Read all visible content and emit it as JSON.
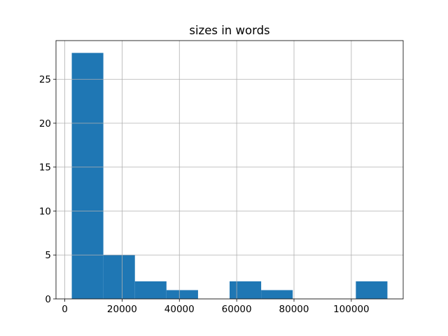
{
  "chart_data": {
    "type": "histogram",
    "title": "sizes in words",
    "bins": [
      2450,
      13465,
      24480,
      35495,
      46510,
      57525,
      68540,
      79555,
      90570,
      101585,
      112600
    ],
    "values": [
      28,
      5,
      2,
      1,
      0,
      2,
      1,
      0,
      0,
      2
    ],
    "color": "#1f77b4",
    "xlim": [
      -3057,
      118107
    ],
    "xticks": [
      0,
      20000,
      40000,
      60000,
      80000,
      100000
    ],
    "ylim": [
      0,
      29.4
    ],
    "yticks": [
      0,
      5,
      10,
      15,
      20,
      25
    ],
    "grid": true
  }
}
